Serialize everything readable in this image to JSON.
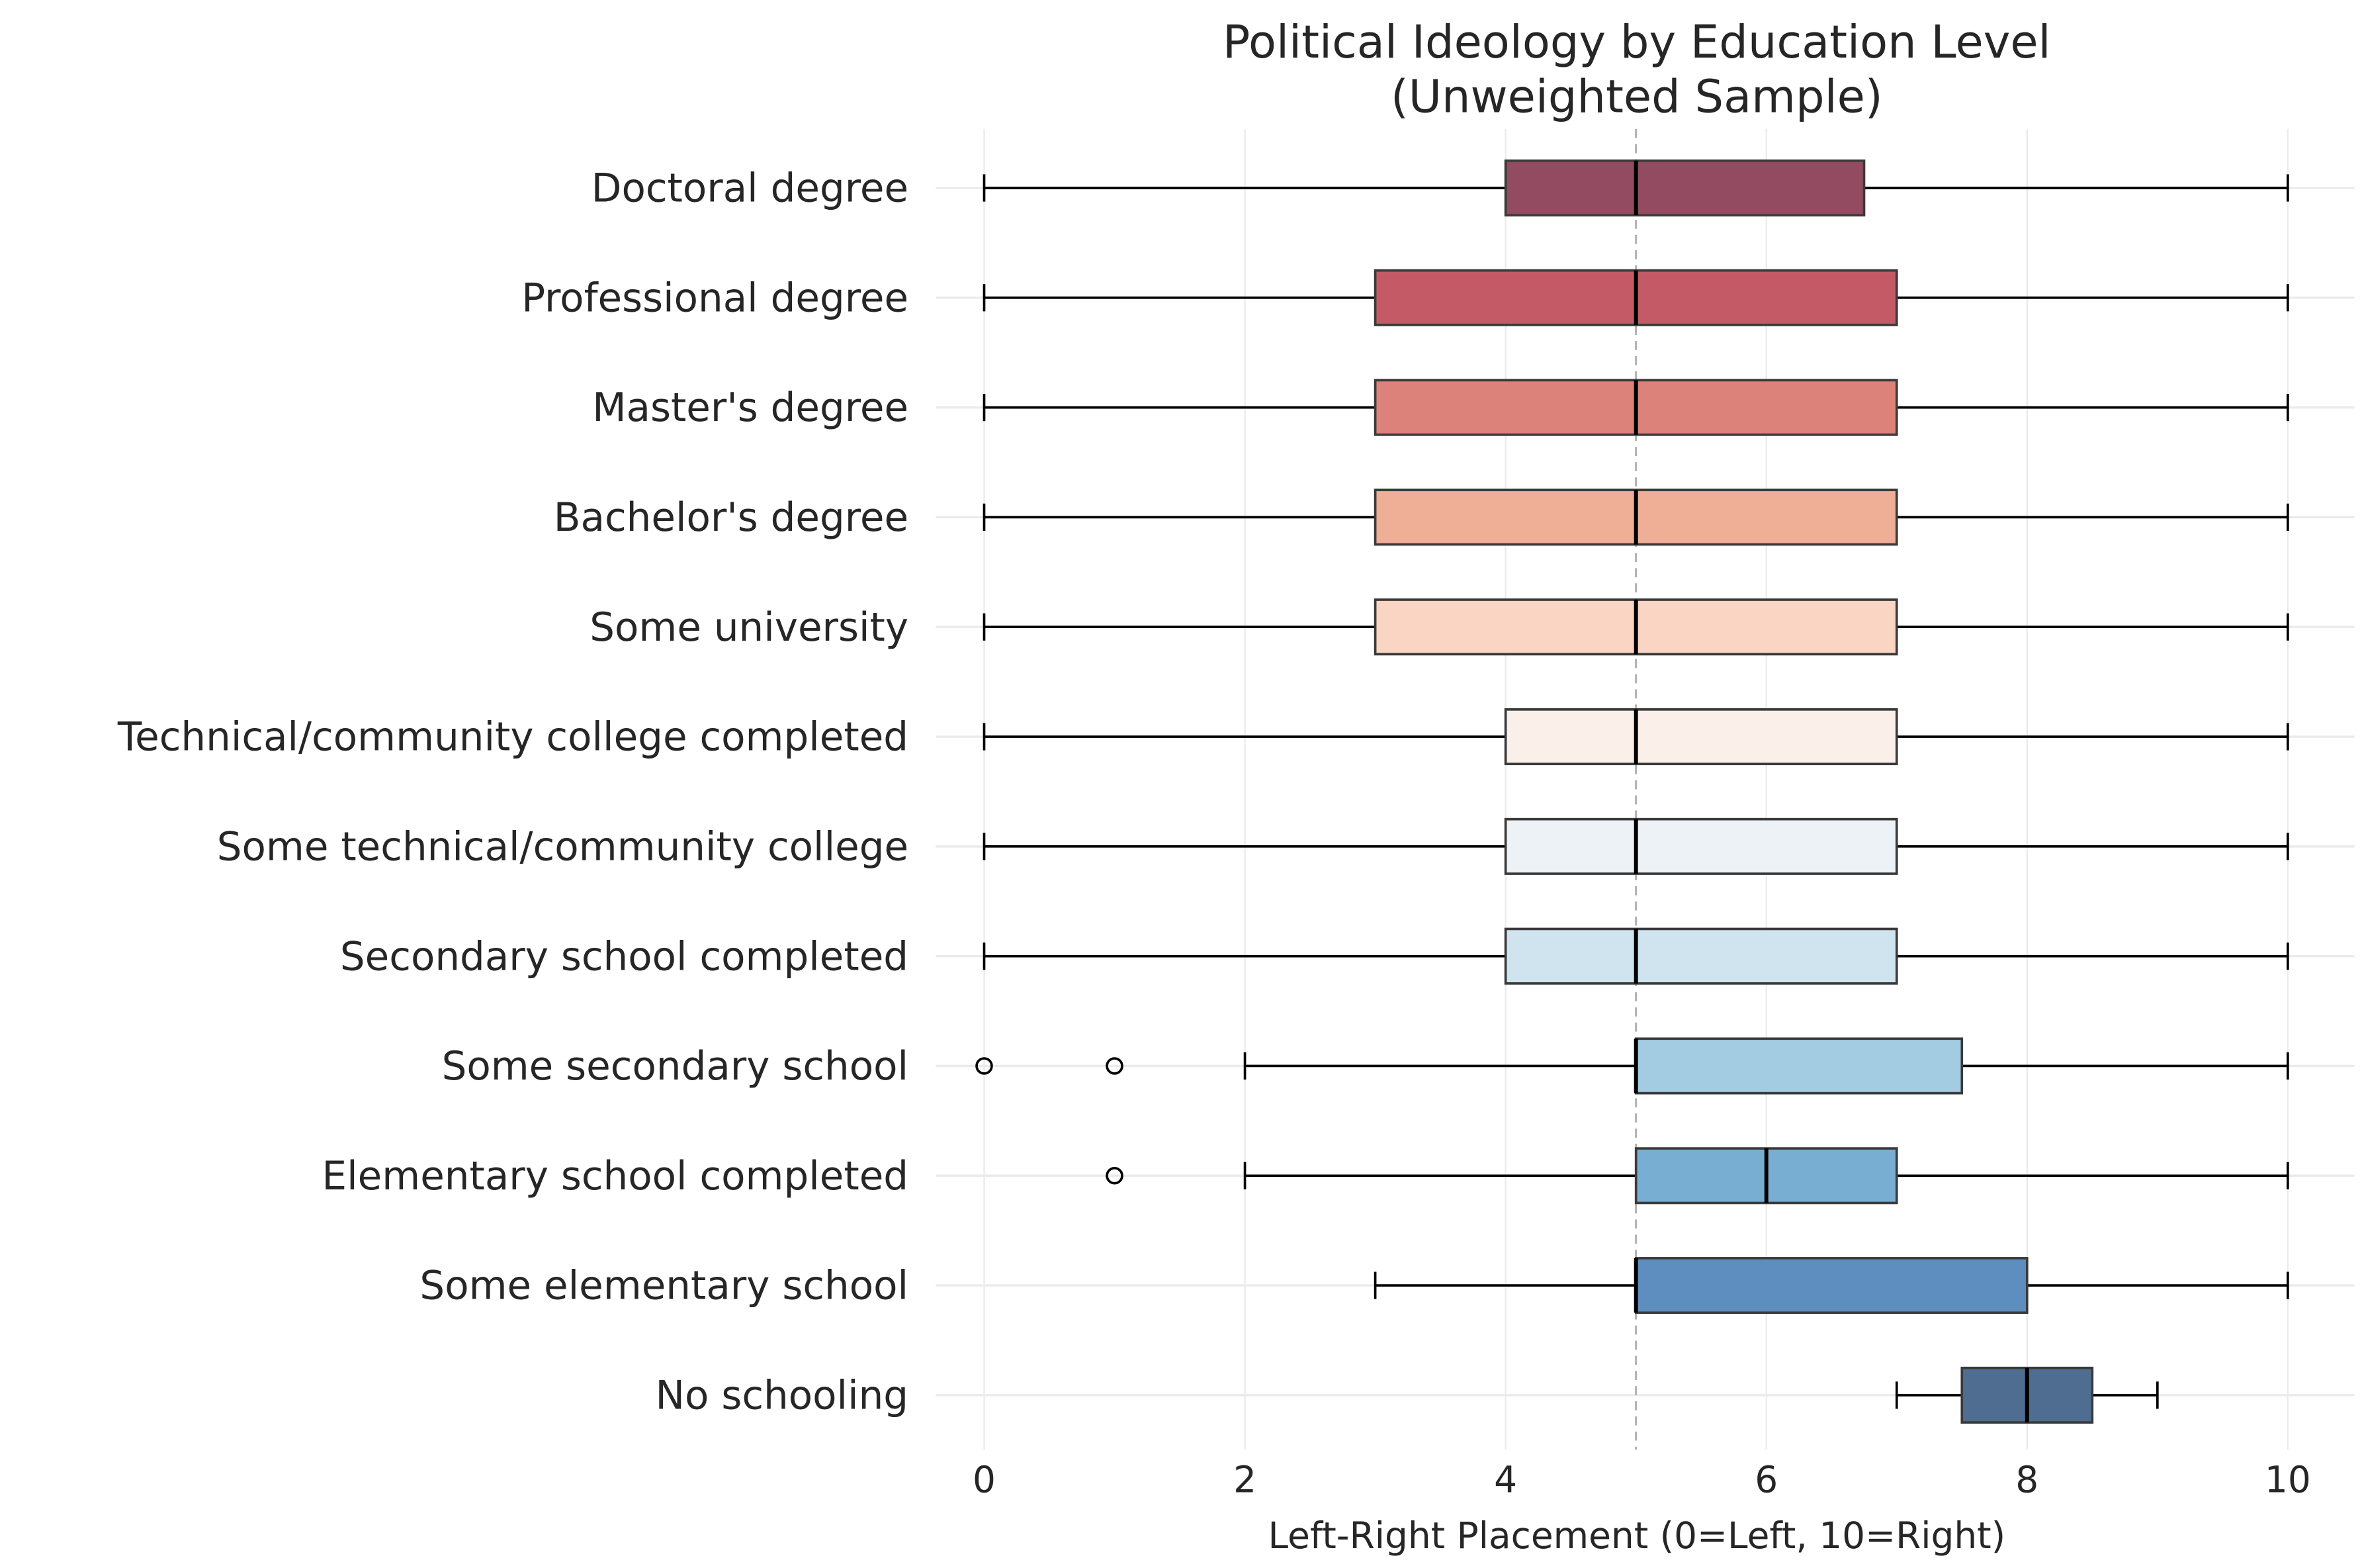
{
  "chart_data": {
    "type": "boxplot",
    "orientation": "horizontal",
    "title": "Political Ideology by Education Level",
    "subtitle": "(Unweighted Sample)",
    "xlabel": "Left-Right Placement (0=Left, 10=Right)",
    "ylabel": "",
    "xlim": [
      -0.3,
      10.5
    ],
    "xticks": [
      0,
      2,
      4,
      6,
      8,
      10
    ],
    "grid": true,
    "reference_line": 5,
    "categories": [
      {
        "label": "Doctoral degree",
        "whislo": 0,
        "q1": 4,
        "median": 5,
        "q3": 6.75,
        "whishi": 10,
        "fliers": [],
        "color": "#924b60"
      },
      {
        "label": "Professional degree",
        "whislo": 0,
        "q1": 3,
        "median": 5,
        "q3": 7,
        "whishi": 10,
        "fliers": [],
        "color": "#c45a66"
      },
      {
        "label": "Master's degree",
        "whislo": 0,
        "q1": 3,
        "median": 5,
        "q3": 7,
        "whishi": 10,
        "fliers": [],
        "color": "#dd827a"
      },
      {
        "label": "Bachelor's degree",
        "whislo": 0,
        "q1": 3,
        "median": 5,
        "q3": 7,
        "whishi": 10,
        "fliers": [],
        "color": "#efae96"
      },
      {
        "label": "Some university",
        "whislo": 0,
        "q1": 3,
        "median": 5,
        "q3": 7,
        "whishi": 10,
        "fliers": [],
        "color": "#fad5c3"
      },
      {
        "label": "Technical/community college completed",
        "whislo": 0,
        "q1": 4,
        "median": 5,
        "q3": 7,
        "whishi": 10,
        "fliers": [],
        "color": "#fbefe9"
      },
      {
        "label": "Some technical/community college",
        "whislo": 0,
        "q1": 4,
        "median": 5,
        "q3": 7,
        "whishi": 10,
        "fliers": [],
        "color": "#edf2f6"
      },
      {
        "label": "Secondary school completed",
        "whislo": 0,
        "q1": 4,
        "median": 5,
        "q3": 7,
        "whishi": 10,
        "fliers": [],
        "color": "#cfe4ef"
      },
      {
        "label": "Some secondary school",
        "whislo": 2,
        "q1": 5,
        "median": 5,
        "q3": 7.5,
        "whishi": 10,
        "fliers": [
          0,
          1
        ],
        "color": "#a3cbe1"
      },
      {
        "label": "Elementary school completed",
        "whislo": 2,
        "q1": 5,
        "median": 6,
        "q3": 7,
        "whishi": 10,
        "fliers": [
          1
        ],
        "color": "#78aed2"
      },
      {
        "label": "Some elementary school",
        "whislo": 3,
        "q1": 5,
        "median": 5,
        "q3": 8,
        "whishi": 10,
        "fliers": [],
        "color": "#5e8dbf"
      },
      {
        "label": "No schooling",
        "whislo": 7,
        "q1": 7.5,
        "median": 8,
        "q3": 8.5,
        "whishi": 9,
        "fliers": [],
        "color": "#4f6d90"
      }
    ]
  }
}
